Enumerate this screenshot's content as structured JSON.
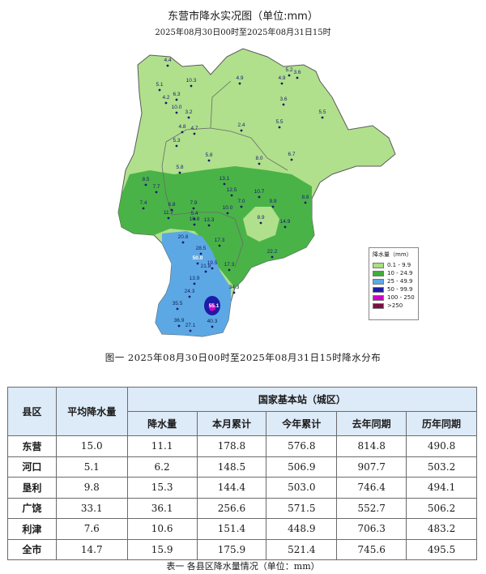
{
  "map": {
    "title": "东营市降水实况图（单位:mm）",
    "subtitle": "2025年08月30日00时至2025年08月31日15时",
    "legend": {
      "title": "降水量（mm）",
      "items": [
        {
          "label": "0.1 - 9.9",
          "color": "#a6e07f"
        },
        {
          "label": "10 - 24.9",
          "color": "#3fae3a"
        },
        {
          "label": "25 - 49.9",
          "color": "#5aa9e6"
        },
        {
          "label": "50 - 99.9",
          "color": "#1c1ca8"
        },
        {
          "label": "100 - 250",
          "color": "#d000c8"
        },
        {
          "label": ">250",
          "color": "#7a1040"
        }
      ]
    },
    "stations": [
      "4.4",
      "5.1",
      "10.3",
      "6.3",
      "4.2",
      "10.0",
      "4.9",
      "5.2",
      "3.6",
      "4.9",
      "3.6",
      "5.5",
      "3.2",
      "2.4",
      "5.5",
      "5.3",
      "5.8",
      "4.7",
      "4.8",
      "8.0",
      "6.7",
      "5.8",
      "8.5",
      "7.7",
      "13.1",
      "12.5",
      "10.7",
      "6.8",
      "7.4",
      "7.0",
      "9.9",
      "8.8",
      "14.9",
      "11.7",
      "10.0",
      "13.3",
      "10.8",
      "8.9",
      "7.9",
      "28.5",
      "17.3",
      "20.8",
      "22.2",
      "19.5",
      "17.3",
      "21.8",
      "13.9",
      "50.0",
      "24.3",
      "34.3",
      "55.1",
      "35.5",
      "36.9",
      "40.3",
      "27.1",
      "5.4"
    ]
  },
  "figure_caption": "图一  2025年08月30日00时至2025年08月31日15时降水分布",
  "table": {
    "headers": {
      "county": "县区",
      "avg": "平均降水量",
      "group": "国家基本站（城区）",
      "rain": "降水量",
      "month_total": "本月累计",
      "year_total": "今年累计",
      "last_year": "去年同期",
      "history": "历年同期"
    },
    "rows": [
      {
        "county": "东营",
        "avg": "15.0",
        "rain": "11.1",
        "month_total": "178.8",
        "year_total": "576.8",
        "last_year": "814.8",
        "history": "490.8"
      },
      {
        "county": "河口",
        "avg": "5.1",
        "rain": "6.2",
        "month_total": "148.5",
        "year_total": "506.9",
        "last_year": "907.7",
        "history": "503.2"
      },
      {
        "county": "垦利",
        "avg": "9.8",
        "rain": "15.3",
        "month_total": "144.4",
        "year_total": "503.0",
        "last_year": "746.4",
        "history": "494.1"
      },
      {
        "county": "广饶",
        "avg": "33.1",
        "rain": "36.1",
        "month_total": "256.6",
        "year_total": "571.5",
        "last_year": "552.7",
        "history": "506.2"
      },
      {
        "county": "利津",
        "avg": "7.6",
        "rain": "10.6",
        "month_total": "151.4",
        "year_total": "448.9",
        "last_year": "706.3",
        "history": "483.2"
      },
      {
        "county": "全市",
        "avg": "14.7",
        "rain": "15.9",
        "month_total": "175.9",
        "year_total": "521.4",
        "last_year": "745.6",
        "history": "495.5"
      }
    ],
    "caption": "表一  各县区降水量情况（单位：mm）"
  }
}
